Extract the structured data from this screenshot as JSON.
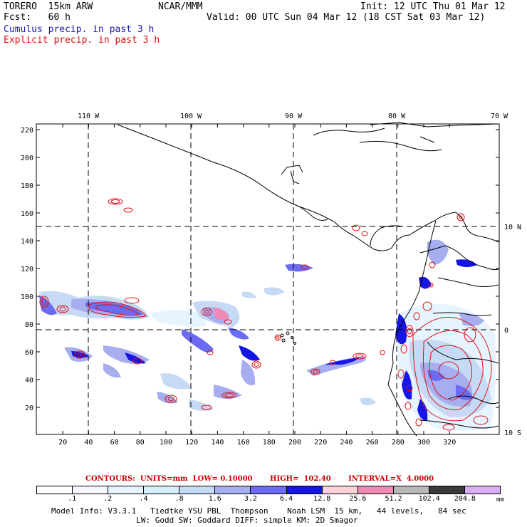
{
  "header": {
    "model": "TORERO  15km ARW",
    "org": "NCAR/MMM",
    "init": "Init: 12 UTC Thu 01 Mar 12",
    "fcst": "Fcst:   60 h",
    "valid": "Valid: 00 UTC Sun 04 Mar 12 (18 CST Sat 03 Mar 12)",
    "cumulus_label": "Cumulus precip. in past 3 h",
    "explicit_label": "Explicit precip. in past 3 h"
  },
  "map": {
    "top_lon_labels": [
      "110 W",
      "100 W",
      "90 W",
      "80 W",
      "70 W"
    ],
    "right_lat_labels": [
      "10 N",
      "0",
      "10 S"
    ],
    "x_ticks": [
      "20",
      "40",
      "60",
      "80",
      "100",
      "120",
      "140",
      "160",
      "180",
      "200",
      "220",
      "240",
      "260",
      "280",
      "300",
      "320"
    ],
    "y_ticks": [
      "20",
      "40",
      "60",
      "80",
      "100",
      "120",
      "140",
      "160",
      "180",
      "200",
      "220"
    ]
  },
  "legend": {
    "contours_text": "CONTOURS:  UNITS=mm  LOW= 0.10000       HIGH=  102.40       INTERVAL=X  4.0000",
    "values": [
      ".1",
      ".2",
      ".4",
      ".8",
      "1.6",
      "3.2",
      "6.4",
      "12.8",
      "25.6",
      "51.2",
      "102.4",
      "204.8"
    ],
    "colors": [
      "#ffffff",
      "#f7f7ff",
      "#e6f4ff",
      "#d6f0fb",
      "#c6daf5",
      "#a7aef0",
      "#6b6cf2",
      "#1515e6",
      "#fad3d6",
      "#f08ab4",
      "#b8b8b8",
      "#3a3a3a",
      "#d9aef7"
    ],
    "units": "mm"
  },
  "footer": {
    "line1": "Model Info: V3.3.1   Tiedtke YSU PBL  Thompson    Noah LSM  15 km,   44 levels,   84 sec",
    "line2": "                  LW: Godd SW: Goddard DIFF: simple KM: 2D Smagor"
  }
}
